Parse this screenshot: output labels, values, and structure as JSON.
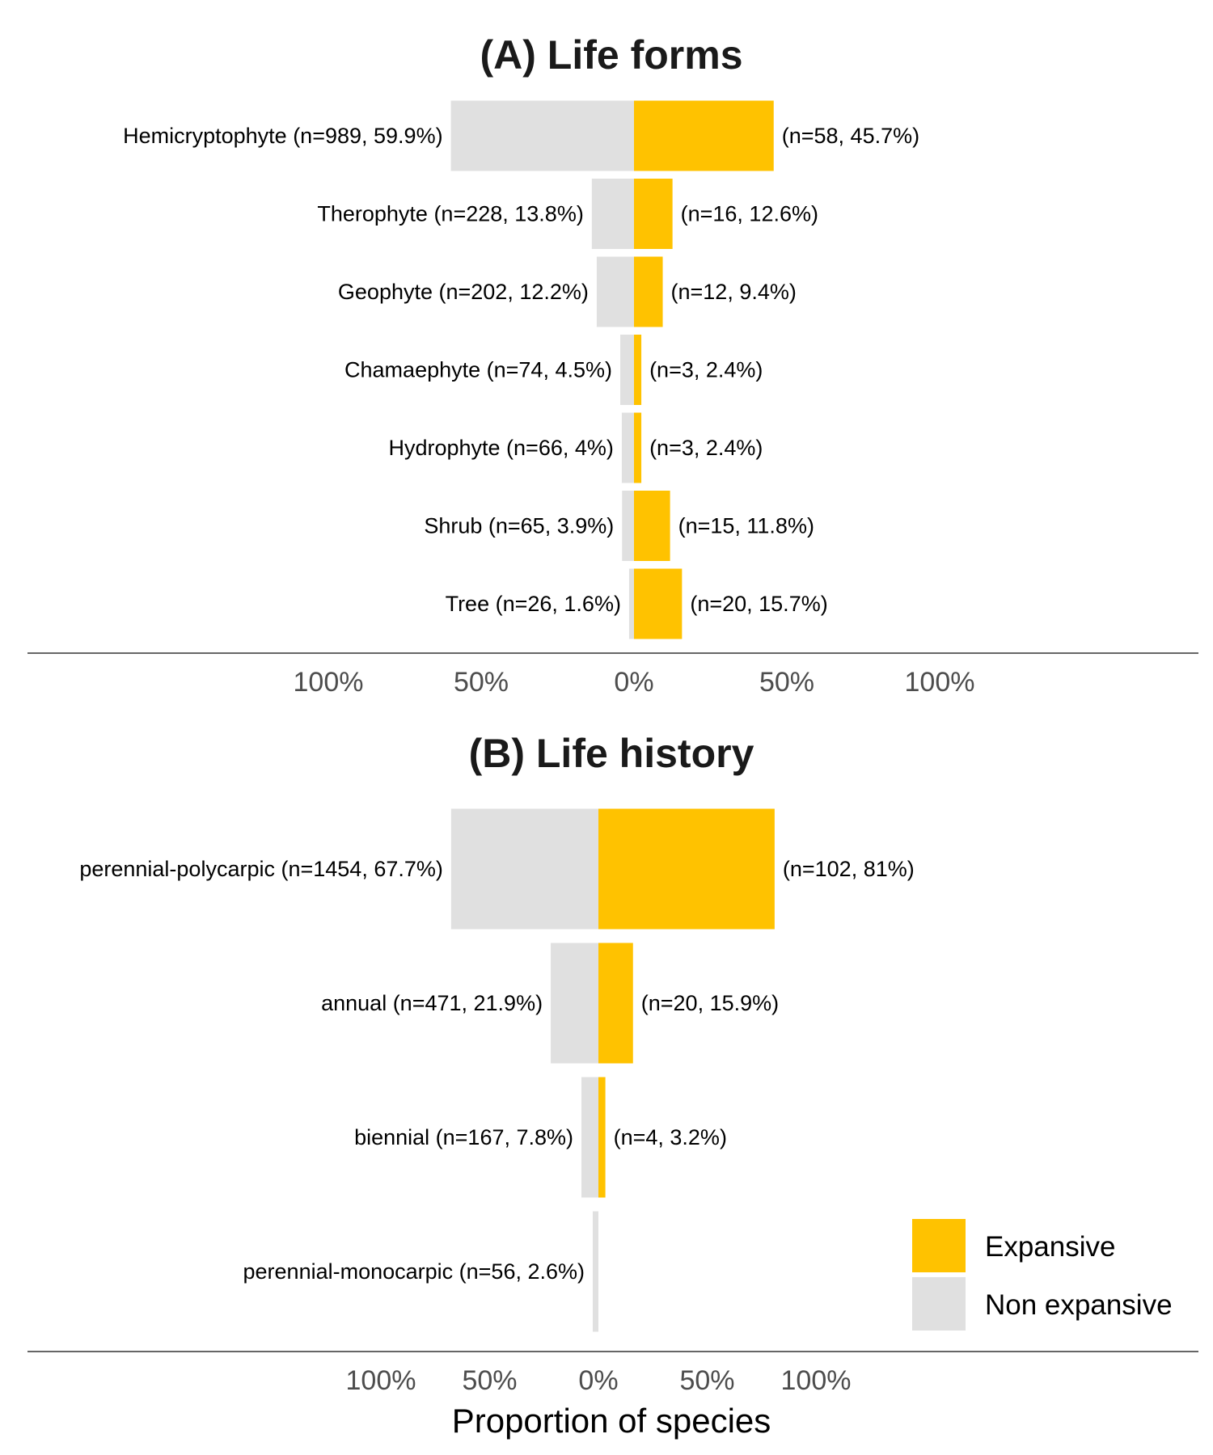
{
  "colors": {
    "expansive": "#FFC200",
    "non_expansive": "#E0E0E0",
    "axis": "#333333"
  },
  "x_axis_title": "Proportion of species",
  "legend": {
    "items": [
      "Expansive",
      "Non expansive"
    ],
    "placement": "bottom-right"
  },
  "chart_data": [
    {
      "type": "bar",
      "orientation": "diverging-horizontal",
      "title": "(A) Life forms",
      "xlim": [
        -100,
        100
      ],
      "tick_labels": [
        "100%",
        "50%",
        "0%",
        "50%",
        "100%"
      ],
      "categories": [
        "Hemicryptophyte",
        "Therophyte",
        "Geophyte",
        "Chamaephyte",
        "Hydrophyte",
        "Shrub",
        "Tree"
      ],
      "series": [
        {
          "name": "Non expansive",
          "values": [
            59.9,
            13.8,
            12.2,
            4.5,
            4,
            3.9,
            1.6
          ],
          "labels": [
            "Hemicryptophyte (n=989, 59.9%)",
            "Therophyte (n=228, 13.8%)",
            "Geophyte (n=202, 12.2%)",
            "Chamaephyte (n=74, 4.5%)",
            "Hydrophyte (n=66, 4%)",
            "Shrub (n=65, 3.9%)",
            "Tree (n=26, 1.6%)"
          ]
        },
        {
          "name": "Expansive",
          "values": [
            45.7,
            12.6,
            9.4,
            2.4,
            2.4,
            11.8,
            15.7
          ],
          "labels": [
            "(n=58, 45.7%)",
            "(n=16, 12.6%)",
            "(n=12, 9.4%)",
            "(n=3, 2.4%)",
            "(n=3, 2.4%)",
            "(n=15, 11.8%)",
            "(n=20, 15.7%)"
          ]
        }
      ]
    },
    {
      "type": "bar",
      "orientation": "diverging-horizontal",
      "title": "(B) Life history",
      "xlim": [
        -100,
        100
      ],
      "tick_labels": [
        "100%",
        "50%",
        "0%",
        "50%",
        "100%"
      ],
      "categories": [
        "perennial-polycarpic",
        "annual",
        "biennial",
        "perennial-monocarpic"
      ],
      "series": [
        {
          "name": "Non expansive",
          "values": [
            67.7,
            21.9,
            7.8,
            2.6
          ],
          "labels": [
            "perennial-polycarpic (n=1454, 67.7%)",
            "annual (n=471, 21.9%)",
            "biennial (n=167, 7.8%)",
            "perennial-monocarpic (n=56, 2.6%)"
          ]
        },
        {
          "name": "Expansive",
          "values": [
            81,
            15.9,
            3.2,
            0
          ],
          "labels": [
            "(n=102, 81%)",
            "(n=20, 15.9%)",
            "(n=4, 3.2%)",
            ""
          ]
        }
      ]
    }
  ]
}
